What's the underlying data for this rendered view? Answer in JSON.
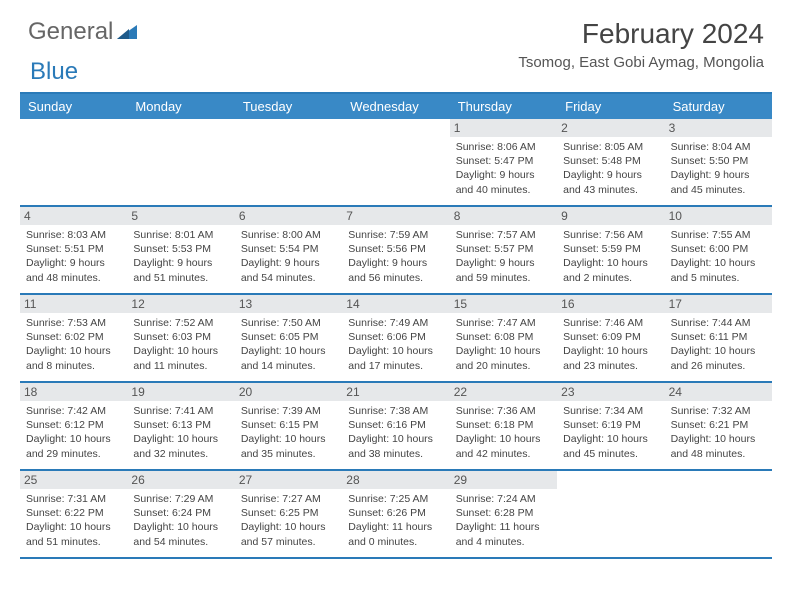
{
  "logo": {
    "word1": "General",
    "word2": "Blue",
    "word1_color": "#666666",
    "word2_color": "#2a7ab8"
  },
  "title": "February 2024",
  "location": "Tsomog, East Gobi Aymag, Mongolia",
  "day_labels": [
    "Sunday",
    "Monday",
    "Tuesday",
    "Wednesday",
    "Thursday",
    "Friday",
    "Saturday"
  ],
  "colors": {
    "header_bg": "#3989c6",
    "accent": "#2a7ab8",
    "daynum_bg": "#e6e8ea",
    "text": "#444444"
  },
  "weeks": [
    [
      null,
      null,
      null,
      null,
      {
        "n": "1",
        "sunrise": "8:06 AM",
        "sunset": "5:47 PM",
        "daylight": "9 hours and 40 minutes."
      },
      {
        "n": "2",
        "sunrise": "8:05 AM",
        "sunset": "5:48 PM",
        "daylight": "9 hours and 43 minutes."
      },
      {
        "n": "3",
        "sunrise": "8:04 AM",
        "sunset": "5:50 PM",
        "daylight": "9 hours and 45 minutes."
      }
    ],
    [
      {
        "n": "4",
        "sunrise": "8:03 AM",
        "sunset": "5:51 PM",
        "daylight": "9 hours and 48 minutes."
      },
      {
        "n": "5",
        "sunrise": "8:01 AM",
        "sunset": "5:53 PM",
        "daylight": "9 hours and 51 minutes."
      },
      {
        "n": "6",
        "sunrise": "8:00 AM",
        "sunset": "5:54 PM",
        "daylight": "9 hours and 54 minutes."
      },
      {
        "n": "7",
        "sunrise": "7:59 AM",
        "sunset": "5:56 PM",
        "daylight": "9 hours and 56 minutes."
      },
      {
        "n": "8",
        "sunrise": "7:57 AM",
        "sunset": "5:57 PM",
        "daylight": "9 hours and 59 minutes."
      },
      {
        "n": "9",
        "sunrise": "7:56 AM",
        "sunset": "5:59 PM",
        "daylight": "10 hours and 2 minutes."
      },
      {
        "n": "10",
        "sunrise": "7:55 AM",
        "sunset": "6:00 PM",
        "daylight": "10 hours and 5 minutes."
      }
    ],
    [
      {
        "n": "11",
        "sunrise": "7:53 AM",
        "sunset": "6:02 PM",
        "daylight": "10 hours and 8 minutes."
      },
      {
        "n": "12",
        "sunrise": "7:52 AM",
        "sunset": "6:03 PM",
        "daylight": "10 hours and 11 minutes."
      },
      {
        "n": "13",
        "sunrise": "7:50 AM",
        "sunset": "6:05 PM",
        "daylight": "10 hours and 14 minutes."
      },
      {
        "n": "14",
        "sunrise": "7:49 AM",
        "sunset": "6:06 PM",
        "daylight": "10 hours and 17 minutes."
      },
      {
        "n": "15",
        "sunrise": "7:47 AM",
        "sunset": "6:08 PM",
        "daylight": "10 hours and 20 minutes."
      },
      {
        "n": "16",
        "sunrise": "7:46 AM",
        "sunset": "6:09 PM",
        "daylight": "10 hours and 23 minutes."
      },
      {
        "n": "17",
        "sunrise": "7:44 AM",
        "sunset": "6:11 PM",
        "daylight": "10 hours and 26 minutes."
      }
    ],
    [
      {
        "n": "18",
        "sunrise": "7:42 AM",
        "sunset": "6:12 PM",
        "daylight": "10 hours and 29 minutes."
      },
      {
        "n": "19",
        "sunrise": "7:41 AM",
        "sunset": "6:13 PM",
        "daylight": "10 hours and 32 minutes."
      },
      {
        "n": "20",
        "sunrise": "7:39 AM",
        "sunset": "6:15 PM",
        "daylight": "10 hours and 35 minutes."
      },
      {
        "n": "21",
        "sunrise": "7:38 AM",
        "sunset": "6:16 PM",
        "daylight": "10 hours and 38 minutes."
      },
      {
        "n": "22",
        "sunrise": "7:36 AM",
        "sunset": "6:18 PM",
        "daylight": "10 hours and 42 minutes."
      },
      {
        "n": "23",
        "sunrise": "7:34 AM",
        "sunset": "6:19 PM",
        "daylight": "10 hours and 45 minutes."
      },
      {
        "n": "24",
        "sunrise": "7:32 AM",
        "sunset": "6:21 PM",
        "daylight": "10 hours and 48 minutes."
      }
    ],
    [
      {
        "n": "25",
        "sunrise": "7:31 AM",
        "sunset": "6:22 PM",
        "daylight": "10 hours and 51 minutes."
      },
      {
        "n": "26",
        "sunrise": "7:29 AM",
        "sunset": "6:24 PM",
        "daylight": "10 hours and 54 minutes."
      },
      {
        "n": "27",
        "sunrise": "7:27 AM",
        "sunset": "6:25 PM",
        "daylight": "10 hours and 57 minutes."
      },
      {
        "n": "28",
        "sunrise": "7:25 AM",
        "sunset": "6:26 PM",
        "daylight": "11 hours and 0 minutes."
      },
      {
        "n": "29",
        "sunrise": "7:24 AM",
        "sunset": "6:28 PM",
        "daylight": "11 hours and 4 minutes."
      },
      null,
      null
    ]
  ],
  "labels": {
    "sunrise": "Sunrise:",
    "sunset": "Sunset:",
    "daylight": "Daylight:"
  }
}
